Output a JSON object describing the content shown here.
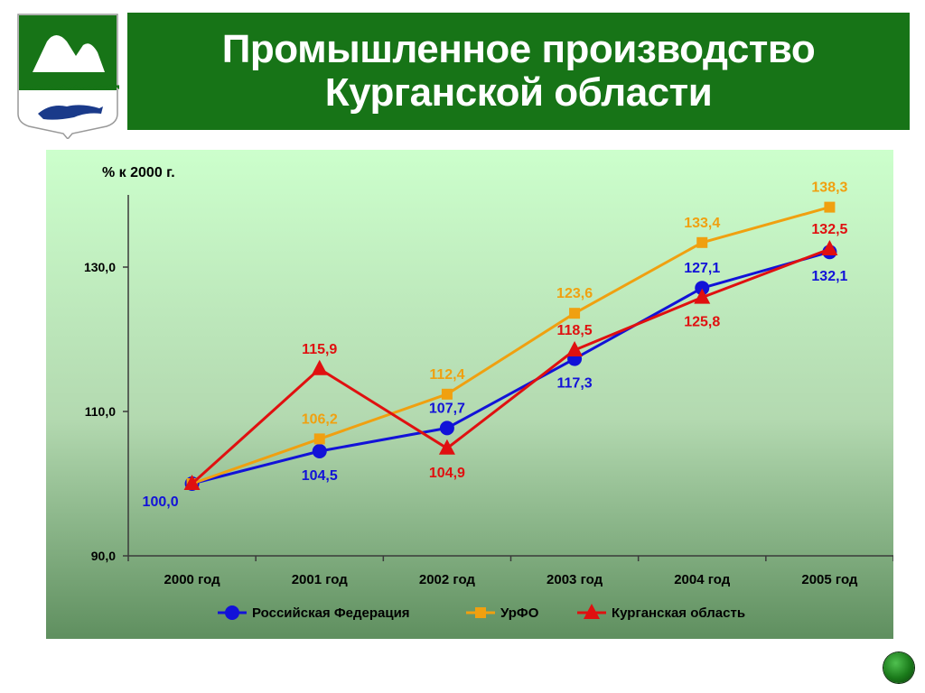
{
  "header": {
    "title_line1": "Промышленное производство",
    "title_line2": "Курганской области",
    "bar_color": "#177417"
  },
  "logo": {
    "icon": "coat-of-arms-icon"
  },
  "nav": {
    "icon": "next-slide-button-icon"
  },
  "chart_data": {
    "type": "line",
    "ylabel": "% к 2000 г.",
    "xlabel": "",
    "categories": [
      "2000 год",
      "2001 год",
      "2002 год",
      "2003 год",
      "2004 год",
      "2005 год"
    ],
    "ylim": [
      90,
      140
    ],
    "yticks": [
      90,
      110,
      130
    ],
    "ytick_labels": [
      "90,0",
      "110,0",
      "130,0"
    ],
    "grid": false,
    "legend_position": "bottom",
    "background": "gradient light-green to green",
    "series": [
      {
        "name": "Российская Федерация",
        "color": "#1212d8",
        "marker": "circle",
        "values": [
          100.0,
          104.5,
          107.7,
          117.3,
          127.1,
          132.1
        ],
        "labels": [
          "100,0",
          "104,5",
          "107,7",
          "117,3",
          "127,1",
          "132,1"
        ]
      },
      {
        "name": "УрФО",
        "color": "#f0a010",
        "marker": "square",
        "values": [
          100.0,
          106.2,
          112.4,
          123.6,
          133.4,
          138.3
        ],
        "labels": [
          "",
          "106,2",
          "112,4",
          "123,6",
          "133,4",
          "138,3"
        ]
      },
      {
        "name": "Курганская область",
        "color": "#e01010",
        "marker": "triangle",
        "values": [
          100.0,
          115.9,
          104.9,
          118.5,
          125.8,
          132.5
        ],
        "labels": [
          "",
          "115,9",
          "104,9",
          "118,5",
          "125,8",
          "132,5"
        ]
      }
    ]
  }
}
